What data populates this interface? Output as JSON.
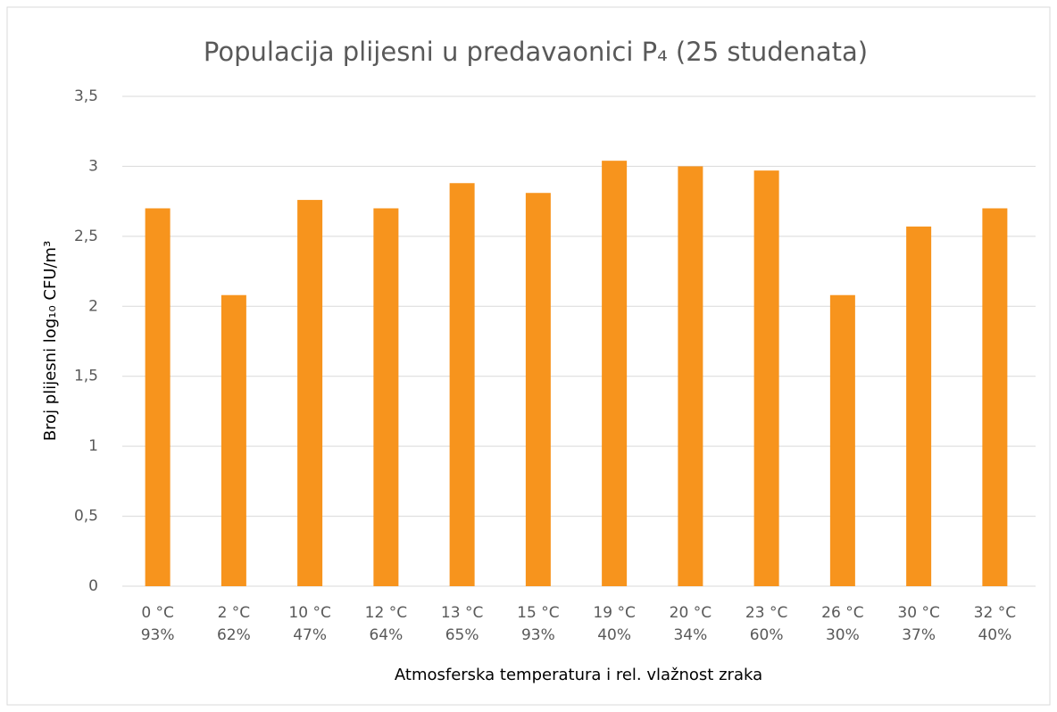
{
  "chart_data": {
    "type": "bar",
    "title": "Populacija plijesni u predavaonici P₄ (25 studenata)",
    "x_label": "Atmosferska temperatura i rel. vlažnost zraka",
    "y_label": "Broj plijesni log₁₀ CFU/m³",
    "categories": [
      [
        "0 °C",
        "93%"
      ],
      [
        "2 °C",
        "62%"
      ],
      [
        "10 °C",
        "47%"
      ],
      [
        "12 °C",
        "64%"
      ],
      [
        "13 °C",
        "65%"
      ],
      [
        "15 °C",
        "93%"
      ],
      [
        "19 °C",
        "40%"
      ],
      [
        "20 °C",
        "34%"
      ],
      [
        "23 °C",
        "60%"
      ],
      [
        "26 °C",
        "30%"
      ],
      [
        "30 °C",
        "37%"
      ],
      [
        "32 °C",
        "40%"
      ]
    ],
    "values": [
      2.7,
      2.08,
      2.76,
      2.7,
      2.88,
      2.81,
      3.04,
      3.0,
      2.97,
      2.08,
      2.57,
      2.7
    ],
    "color": "#f7941d",
    "ylim": [
      0,
      3.5
    ],
    "yticks": [
      0,
      {
        "value": 0.5,
        "label": "0,5"
      },
      1,
      {
        "value": 1.5,
        "label": "1,5"
      },
      2,
      {
        "value": 2.5,
        "label": "2,5"
      },
      3,
      {
        "value": 3.5,
        "label": "3,5"
      }
    ],
    "grid": true
  }
}
